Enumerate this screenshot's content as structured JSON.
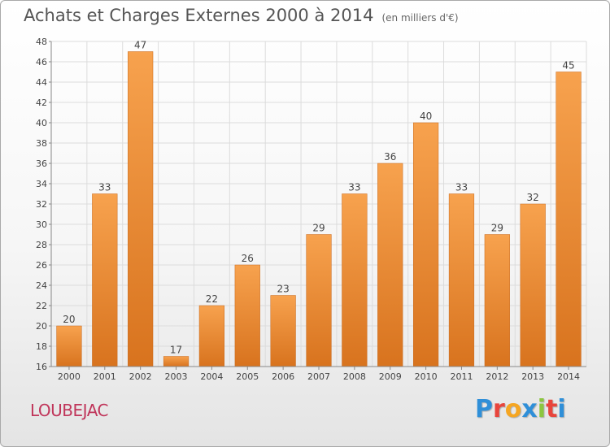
{
  "header": {
    "title": "Achats et Charges Externes 2000 à 2014",
    "subtitle": "(en milliers d'€)"
  },
  "footer": {
    "commune": "LOUBEJAC",
    "logo_text": "Proxiti",
    "logo_colors": [
      "#2f8fd8",
      "#e8453c",
      "#f5a623",
      "#2f8fd8",
      "#8cc63f",
      "#e8453c",
      "#2f8fd8"
    ]
  },
  "colors": {
    "bar_top": "#f7a24e",
    "bar_bottom": "#d8731e",
    "bar_edge": "#c8691c",
    "grid": "#dcdcdc",
    "axis": "#888888",
    "text": "#444444"
  },
  "chart_data": {
    "type": "bar",
    "title": "Achats et Charges Externes 2000 à 2014",
    "subtitle": "(en milliers d'€)",
    "xlabel": "",
    "ylabel": "",
    "categories": [
      "2000",
      "2001",
      "2002",
      "2003",
      "2004",
      "2005",
      "2006",
      "2007",
      "2008",
      "2009",
      "2010",
      "2011",
      "2012",
      "2013",
      "2014"
    ],
    "values": [
      20,
      33,
      47,
      17,
      22,
      26,
      23,
      29,
      33,
      36,
      40,
      33,
      29,
      32,
      45
    ],
    "ylim": [
      16,
      48
    ],
    "yticks": [
      16,
      18,
      20,
      22,
      24,
      26,
      28,
      30,
      32,
      34,
      36,
      38,
      40,
      42,
      44,
      46,
      48
    ],
    "grid": true,
    "data_labels": true
  }
}
